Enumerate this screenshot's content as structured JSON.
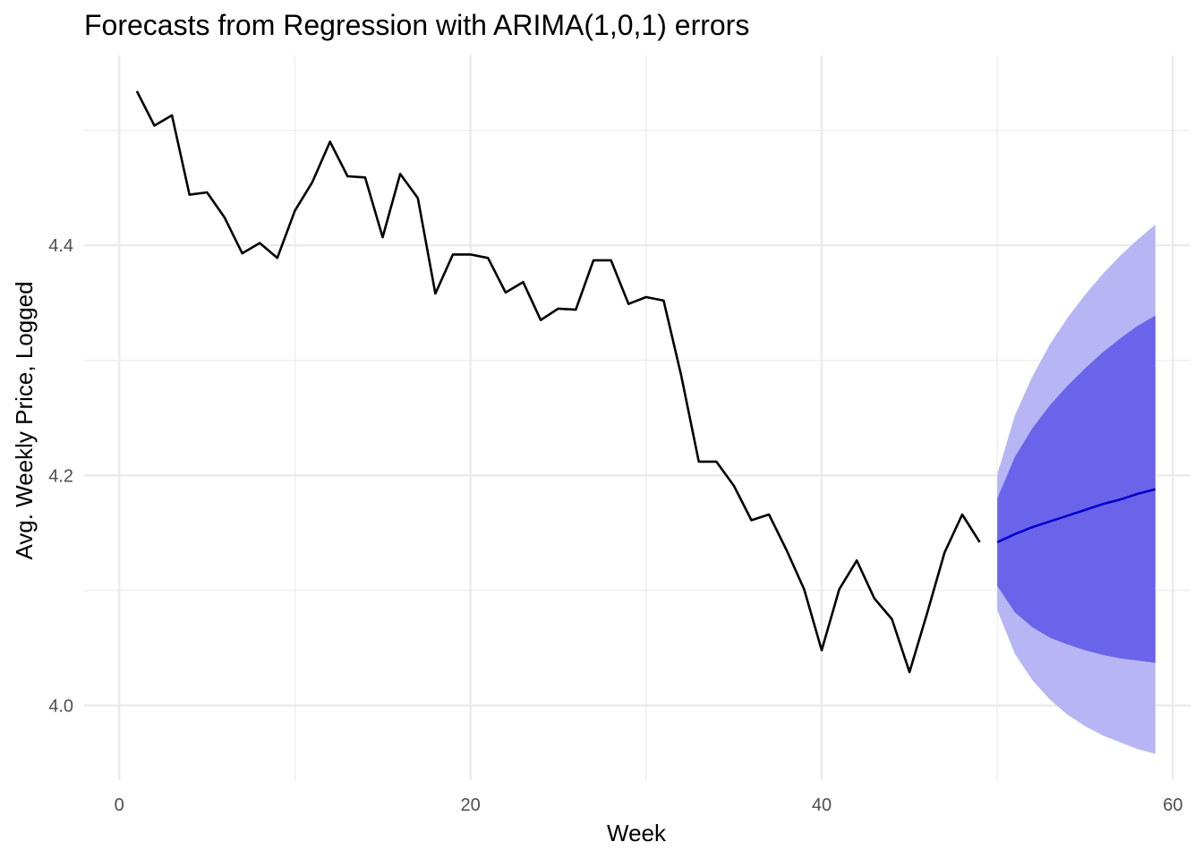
{
  "chart_data": {
    "type": "line",
    "title": "Forecasts from Regression with ARIMA(1,0,1) errors",
    "xlabel": "Week",
    "ylabel": "Avg. Weekly Price, Logged",
    "xlim": [
      -2,
      61
    ],
    "ylim": [
      3.935,
      4.565
    ],
    "x_ticks": [
      0,
      20,
      40,
      60
    ],
    "x_tick_labels": [
      "0",
      "20",
      "40",
      "60"
    ],
    "y_ticks": [
      4.0,
      4.2,
      4.4
    ],
    "y_tick_labels": [
      "4.0",
      "4.2",
      "4.4"
    ],
    "x_minor": [
      10,
      30,
      50
    ],
    "y_minor": [
      4.1,
      4.3,
      4.5
    ],
    "grid": true,
    "legend": "none",
    "colors": {
      "history": "#000000",
      "forecast": "#0000cc",
      "pi80": "#6a64ea",
      "pi95": "#b7b5f3",
      "grid": "#ebebeb"
    },
    "series": [
      {
        "x": [
          1,
          2,
          3,
          4,
          5,
          6,
          7,
          8,
          9,
          10,
          11,
          12,
          13,
          14,
          15,
          16,
          17,
          18,
          19,
          20,
          21,
          22,
          23,
          24,
          25,
          26,
          27,
          28,
          29,
          30,
          31,
          32,
          33,
          34,
          35,
          36,
          37,
          38,
          39,
          40,
          41,
          42,
          43,
          44,
          45,
          46,
          47,
          48,
          49
        ],
        "values": [
          4.534,
          4.504,
          4.513,
          4.444,
          4.446,
          4.424,
          4.393,
          4.402,
          4.389,
          4.43,
          4.455,
          4.49,
          4.46,
          4.459,
          4.407,
          4.462,
          4.441,
          4.358,
          4.392,
          4.392,
          4.389,
          4.359,
          4.368,
          4.335,
          4.345,
          4.344,
          4.387,
          4.387,
          4.349,
          4.355,
          4.352,
          4.287,
          4.212,
          4.212,
          4.191,
          4.161,
          4.166,
          4.135,
          4.101,
          4.048,
          4.101,
          4.126,
          4.093,
          4.075,
          4.029,
          4.08,
          4.133,
          4.166,
          4.142
        ]
      },
      {
        "x": [
          50,
          51,
          52,
          53,
          54,
          55,
          56,
          57,
          58,
          59
        ],
        "values": [
          4.142,
          4.149,
          4.155,
          4.16,
          4.165,
          4.17,
          4.175,
          4.179,
          4.184,
          4.188
        ]
      },
      {
        "x": [
          50,
          51,
          52,
          53,
          54,
          55,
          56,
          57,
          58,
          59
        ],
        "lower": [
          4.104,
          4.081,
          4.068,
          4.059,
          4.053,
          4.048,
          4.044,
          4.041,
          4.039,
          4.037
        ],
        "upper": [
          4.18,
          4.216,
          4.241,
          4.261,
          4.278,
          4.293,
          4.307,
          4.319,
          4.33,
          4.339
        ]
      },
      {
        "x": [
          50,
          51,
          52,
          53,
          54,
          55,
          56,
          57,
          58,
          59
        ],
        "lower": [
          4.083,
          4.045,
          4.022,
          4.005,
          3.992,
          3.982,
          3.974,
          3.968,
          3.962,
          3.958
        ],
        "upper": [
          4.201,
          4.252,
          4.286,
          4.314,
          4.337,
          4.357,
          4.375,
          4.391,
          4.405,
          4.418
        ]
      }
    ]
  }
}
